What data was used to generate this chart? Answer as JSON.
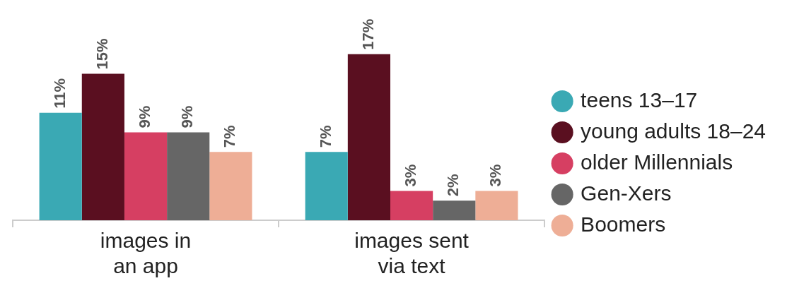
{
  "chart_data": {
    "type": "bar",
    "categories": [
      "images in an app",
      "images sent via text"
    ],
    "series": [
      {
        "name": "teens 13–17",
        "color": "#3aa9b4",
        "values": [
          11,
          7
        ],
        "value_labels": [
          "11%",
          "7%"
        ]
      },
      {
        "name": "young adults 18–24",
        "color": "#5a0f20",
        "values": [
          15,
          17
        ],
        "value_labels": [
          "15%",
          "17%"
        ]
      },
      {
        "name": "older Millennials",
        "color": "#d63f62",
        "values": [
          9,
          3
        ],
        "value_labels": [
          "9%",
          "3%"
        ]
      },
      {
        "name": "Gen-Xers",
        "color": "#666666",
        "values": [
          9,
          2
        ],
        "value_labels": [
          "9%",
          "2%"
        ]
      },
      {
        "name": "Boomers",
        "color": "#eeae96",
        "values": [
          7,
          3
        ],
        "value_labels": [
          "7%",
          "3%"
        ]
      }
    ],
    "grid": false,
    "legend": "right"
  }
}
